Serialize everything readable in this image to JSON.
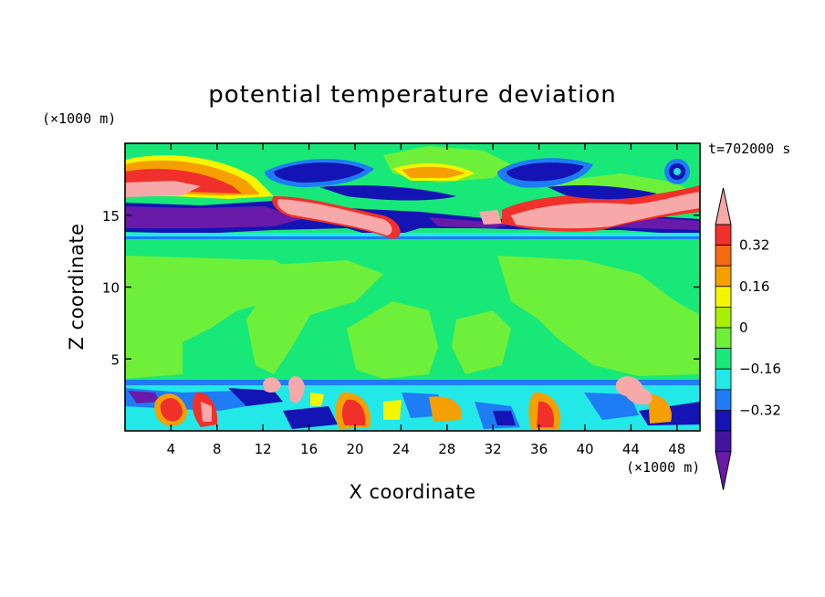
{
  "chart_data": {
    "type": "heatmap",
    "title": "potential temperature deviation",
    "xlabel": "X coordinate",
    "ylabel": "Z coordinate",
    "x_unit": "(×1000 m)",
    "y_unit": "(×1000 m)",
    "time_label": "t=702000 s",
    "xlim": [
      0,
      50
    ],
    "ylim": [
      0,
      20
    ],
    "x_ticks": [
      4,
      8,
      12,
      16,
      20,
      24,
      28,
      32,
      36,
      40,
      44,
      48
    ],
    "y_ticks": [
      5,
      10,
      15
    ],
    "colorbar": {
      "levels": [
        -0.48,
        -0.4,
        -0.32,
        -0.24,
        -0.16,
        -0.08,
        0,
        0.08,
        0.16,
        0.24,
        0.32,
        0.4,
        0.48
      ],
      "labeled_levels": [
        0.32,
        0.16,
        0,
        -0.16,
        -0.32
      ],
      "labels": [
        "0.32",
        "0.16",
        "0",
        "−0.16",
        "−0.32"
      ],
      "colors_top_to_bottom": [
        "#f7a8a8",
        "#f0302a",
        "#f56a10",
        "#f5a000",
        "#f5f500",
        "#a8f000",
        "#6ef03a",
        "#18e878",
        "#22e8e8",
        "#1e7cf5",
        "#1414b4",
        "#4414a0",
        "#6a1aa8"
      ]
    },
    "layers": [
      {
        "z_range": [
          0,
          3.6
        ],
        "pattern": "strong oscillating cells, alternating positive (red/pink) and negative (blue/purple) deviations"
      },
      {
        "z_range": [
          3.6,
          13.5
        ],
        "pattern": "near-zero deviation (green), weak patches around 0.04"
      },
      {
        "z_range": [
          13.5,
          16
        ],
        "pattern": "strong negative band (purple) with positive pink streaks"
      },
      {
        "z_range": [
          16,
          20
        ],
        "pattern": "positive red/orange arcs and negative blue lenses near the top"
      }
    ]
  }
}
